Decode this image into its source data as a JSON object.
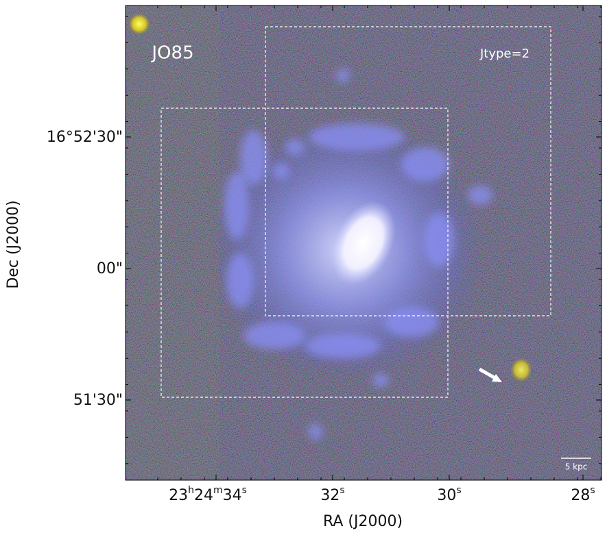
{
  "title": "JO85",
  "annotation": "Jtype=2",
  "scale_bar": "5 kpc",
  "x_axis": {
    "label": "RA (J2000)",
    "ticks": [
      [
        "23",
        "h",
        "24",
        "m",
        "34",
        "s"
      ],
      [
        "32",
        "s"
      ],
      [
        "30",
        "s"
      ],
      [
        "28",
        "s"
      ]
    ]
  },
  "y_axis": {
    "label": "Dec (J2000)",
    "ticks": [
      "16°52'30\"",
      "00\"",
      "51'30\""
    ]
  }
}
